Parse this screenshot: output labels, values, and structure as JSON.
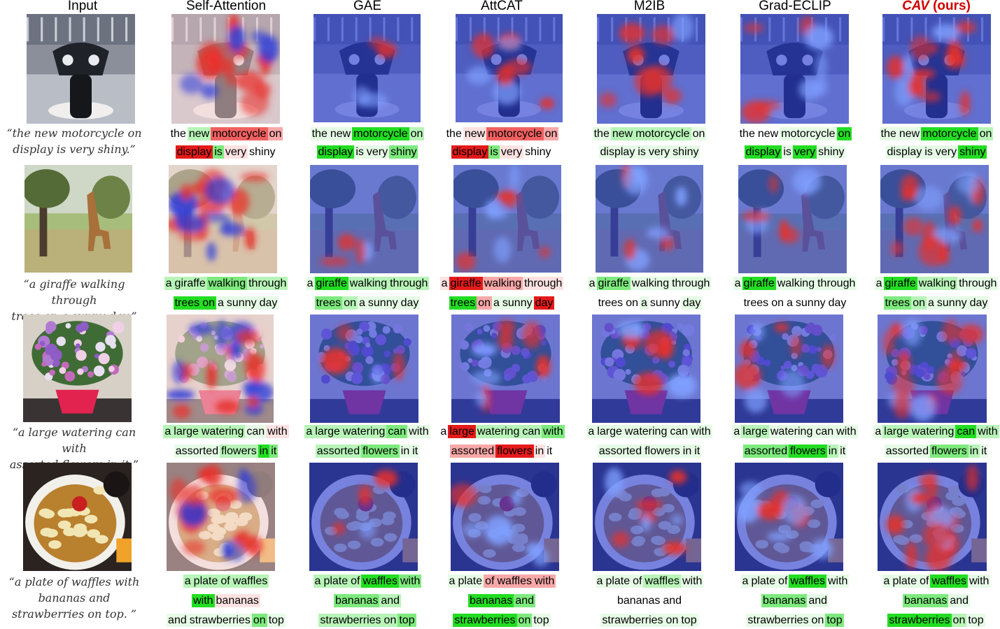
{
  "columns": [
    "Input",
    "Self-Attention",
    "GAE",
    "AttCAT",
    "M2IB",
    "Grad-ECLIP"
  ],
  "ours_column": {
    "name": "CAV",
    "suffix": " (ours)"
  },
  "rows": [
    {
      "caption": [
        "“the new motorcycle on",
        "display is very shiny.”"
      ],
      "scene": "motorcycle",
      "methods": [
        [
          [
            [
              "the",
              "g0"
            ],
            [
              "new",
              "g2"
            ],
            [
              "motorcycle",
              "r3"
            ],
            [
              "on",
              "r2"
            ]
          ],
          [
            [
              "display",
              "r4"
            ],
            [
              "is",
              "g3"
            ],
            [
              "very",
              "r1"
            ],
            [
              "shiny",
              "g0"
            ]
          ]
        ],
        [
          [
            [
              "the",
              "g1"
            ],
            [
              "new",
              "g1"
            ],
            [
              "motorcycle",
              "g4"
            ],
            [
              "on",
              "g2"
            ]
          ],
          [
            [
              "display",
              "g4"
            ],
            [
              "is",
              "g1"
            ],
            [
              "very",
              "g1"
            ],
            [
              "shiny",
              "g3"
            ]
          ]
        ],
        [
          [
            [
              "the",
              "g0"
            ],
            [
              "new",
              "r1"
            ],
            [
              "motorcycle",
              "r3"
            ],
            [
              "on",
              "r2"
            ]
          ],
          [
            [
              "display",
              "r4"
            ],
            [
              "is",
              "g3"
            ],
            [
              "very",
              "r1"
            ],
            [
              "shiny",
              "g0"
            ]
          ]
        ],
        [
          [
            [
              "the",
              "g1"
            ],
            [
              "new",
              "g2"
            ],
            [
              "motorcycle",
              "g2"
            ],
            [
              "on",
              "g1"
            ]
          ],
          [
            [
              "display",
              "g1"
            ],
            [
              "is",
              "g1"
            ],
            [
              "very",
              "g1"
            ],
            [
              "shiny",
              "g1"
            ]
          ]
        ],
        [
          [
            [
              "the",
              "g0"
            ],
            [
              "new",
              "g0"
            ],
            [
              "motorcycle",
              "g1"
            ],
            [
              "on",
              "g4"
            ]
          ],
          [
            [
              "display",
              "g4"
            ],
            [
              "is",
              "g1"
            ],
            [
              "very",
              "g4"
            ],
            [
              "shiny",
              "g1"
            ]
          ]
        ],
        [
          [
            [
              "the",
              "g1"
            ],
            [
              "new",
              "g1"
            ],
            [
              "motorcycle",
              "g4"
            ],
            [
              "on",
              "g2"
            ]
          ],
          [
            [
              "display",
              "g1"
            ],
            [
              "is",
              "g1"
            ],
            [
              "very",
              "g1"
            ],
            [
              "shiny",
              "g4"
            ]
          ]
        ]
      ]
    },
    {
      "caption": [
        "“a giraffe walking through",
        "trees on a sunny day.”"
      ],
      "scene": "giraffe",
      "methods": [
        [
          [
            [
              "a",
              "g2"
            ],
            [
              "giraffe",
              "g2"
            ],
            [
              "walking",
              "g3"
            ],
            [
              "through",
              "g2"
            ]
          ],
          [
            [
              "trees",
              "g4"
            ],
            [
              "on",
              "g4"
            ],
            [
              "a",
              "g1"
            ],
            [
              "sunny",
              "g1"
            ],
            [
              "day",
              "g1"
            ]
          ]
        ],
        [
          [
            [
              "a",
              "g1"
            ],
            [
              "giraffe",
              "g4"
            ],
            [
              "walking",
              "g2"
            ],
            [
              "through",
              "g2"
            ]
          ],
          [
            [
              "trees",
              "g3"
            ],
            [
              "on",
              "g2"
            ],
            [
              "a",
              "g1"
            ],
            [
              "sunny",
              "g1"
            ],
            [
              "day",
              "g1"
            ]
          ]
        ],
        [
          [
            [
              "a",
              "r1"
            ],
            [
              "giraffe",
              "r4"
            ],
            [
              "walking",
              "r2"
            ],
            [
              "through",
              "r1"
            ]
          ],
          [
            [
              "trees",
              "g4"
            ],
            [
              "on",
              "r2"
            ],
            [
              "a",
              "g1"
            ],
            [
              "sunny",
              "g1"
            ],
            [
              "day",
              "r4"
            ]
          ]
        ],
        [
          [
            [
              "a",
              "g1"
            ],
            [
              "giraffe",
              "g3"
            ],
            [
              "walking",
              "g1"
            ],
            [
              "through",
              "g1"
            ]
          ],
          [
            [
              "trees",
              "g0"
            ],
            [
              "on",
              "g0"
            ],
            [
              "a",
              "g1"
            ],
            [
              "sunny",
              "g0"
            ],
            [
              "day",
              "g1"
            ]
          ]
        ],
        [
          [
            [
              "a",
              "g1"
            ],
            [
              "giraffe",
              "g4"
            ],
            [
              "walking",
              "g1"
            ],
            [
              "through",
              "g1"
            ]
          ],
          [
            [
              "trees",
              "g0"
            ],
            [
              "on",
              "g0"
            ],
            [
              "a",
              "g0"
            ],
            [
              "sunny",
              "g0"
            ],
            [
              "day",
              "g0"
            ]
          ]
        ],
        [
          [
            [
              "a",
              "g1"
            ],
            [
              "giraffe",
              "g4"
            ],
            [
              "walking",
              "g2"
            ],
            [
              "through",
              "g1"
            ]
          ],
          [
            [
              "trees",
              "g3"
            ],
            [
              "on",
              "g2"
            ],
            [
              "a",
              "g1"
            ],
            [
              "sunny",
              "g1"
            ],
            [
              "day",
              "g1"
            ]
          ]
        ]
      ]
    },
    {
      "caption": [
        "“a large watering can with",
        "assorted flowers in it.”"
      ],
      "scene": "flowers",
      "methods": [
        [
          [
            [
              "a",
              "g2"
            ],
            [
              "large",
              "g2"
            ],
            [
              "watering",
              "g2"
            ],
            [
              "can",
              "g1"
            ],
            [
              "with",
              "r1"
            ]
          ],
          [
            [
              "assorted",
              "g1"
            ],
            [
              "flowers",
              "g2"
            ],
            [
              "in",
              "g4"
            ],
            [
              "it",
              "g3"
            ]
          ]
        ],
        [
          [
            [
              "a",
              "g2"
            ],
            [
              "large",
              "g2"
            ],
            [
              "watering",
              "g2"
            ],
            [
              "can",
              "g3"
            ],
            [
              "with",
              "g1"
            ]
          ],
          [
            [
              "assorted",
              "g2"
            ],
            [
              "flowers",
              "g3"
            ],
            [
              "in",
              "g1"
            ],
            [
              "it",
              "g1"
            ]
          ]
        ],
        [
          [
            [
              "a",
              "g0"
            ],
            [
              "large",
              "r4"
            ],
            [
              "watering",
              "g2"
            ],
            [
              "can",
              "g2"
            ],
            [
              "with",
              "g3"
            ]
          ],
          [
            [
              "assorted",
              "r2"
            ],
            [
              "flowers",
              "r4"
            ],
            [
              "in",
              "r1"
            ],
            [
              "it",
              "g0"
            ]
          ]
        ],
        [
          [
            [
              "a",
              "g1"
            ],
            [
              "large",
              "g1"
            ],
            [
              "watering",
              "g1"
            ],
            [
              "can",
              "g1"
            ],
            [
              "with",
              "g1"
            ]
          ],
          [
            [
              "assorted",
              "g1"
            ],
            [
              "flowers",
              "g1"
            ],
            [
              "in",
              "g1"
            ],
            [
              "it",
              "g1"
            ]
          ]
        ],
        [
          [
            [
              "a",
              "g1"
            ],
            [
              "large",
              "g2"
            ],
            [
              "watering",
              "g1"
            ],
            [
              "can",
              "g1"
            ],
            [
              "with",
              "g1"
            ]
          ],
          [
            [
              "assorted",
              "g3"
            ],
            [
              "flowers",
              "g4"
            ],
            [
              "in",
              "g2"
            ],
            [
              "it",
              "g1"
            ]
          ]
        ],
        [
          [
            [
              "a",
              "g1"
            ],
            [
              "large",
              "g2"
            ],
            [
              "watering",
              "g2"
            ],
            [
              "can",
              "g4"
            ],
            [
              "with",
              "g2"
            ]
          ],
          [
            [
              "assorted",
              "g1"
            ],
            [
              "flowers",
              "g3"
            ],
            [
              "in",
              "g2"
            ],
            [
              "it",
              "g1"
            ]
          ]
        ]
      ]
    },
    {
      "caption": [
        "“a plate of waffles with",
        "bananas and",
        "strawberries on top. ”"
      ],
      "scene": "waffles",
      "methods": [
        [
          [
            [
              "a",
              "g2"
            ],
            [
              "plate",
              "g2"
            ],
            [
              "of",
              "g2"
            ],
            [
              "waffles",
              "g2"
            ]
          ],
          [
            [
              "with",
              "g4"
            ],
            [
              "bananas",
              "r1"
            ]
          ],
          [
            [
              "and",
              "g1"
            ],
            [
              "strawberries",
              "g1"
            ],
            [
              "on",
              "g3"
            ],
            [
              "top",
              "g1"
            ]
          ]
        ],
        [
          [
            [
              "a",
              "g2"
            ],
            [
              "plate",
              "g2"
            ],
            [
              "of",
              "g2"
            ],
            [
              "waffles",
              "g4"
            ],
            [
              "with",
              "g3"
            ]
          ],
          [
            [
              "bananas",
              "g3"
            ],
            [
              "and",
              "g2"
            ]
          ],
          [
            [
              "strawberries",
              "g2"
            ],
            [
              "on",
              "g2"
            ],
            [
              "top",
              "g3"
            ]
          ]
        ],
        [
          [
            [
              "a",
              "g1"
            ],
            [
              "plate",
              "g1"
            ],
            [
              "of",
              "r2"
            ],
            [
              "waffles",
              "r2"
            ],
            [
              "with",
              "r2"
            ]
          ],
          [
            [
              "bananas",
              "g4"
            ],
            [
              "and",
              "g3"
            ]
          ],
          [
            [
              "strawberries",
              "g4"
            ],
            [
              "on",
              "g3"
            ],
            [
              "top",
              "g1"
            ]
          ]
        ],
        [
          [
            [
              "a",
              "g1"
            ],
            [
              "plate",
              "g1"
            ],
            [
              "of",
              "g1"
            ],
            [
              "waffles",
              "g2"
            ],
            [
              "with",
              "g1"
            ]
          ],
          [
            [
              "bananas",
              "g0"
            ],
            [
              "and",
              "g0"
            ]
          ],
          [
            [
              "strawberries",
              "g1"
            ],
            [
              "on",
              "g1"
            ],
            [
              "top",
              "g1"
            ]
          ]
        ],
        [
          [
            [
              "a",
              "g1"
            ],
            [
              "plate",
              "g1"
            ],
            [
              "of",
              "g1"
            ],
            [
              "waffles",
              "g4"
            ],
            [
              "with",
              "g1"
            ]
          ],
          [
            [
              "bananas",
              "g3"
            ],
            [
              "and",
              "g1"
            ]
          ],
          [
            [
              "strawberries",
              "g1"
            ],
            [
              "on",
              "g1"
            ],
            [
              "top",
              "g3"
            ]
          ]
        ],
        [
          [
            [
              "a",
              "g1"
            ],
            [
              "plate",
              "g1"
            ],
            [
              "of",
              "g1"
            ],
            [
              "waffles",
              "g4"
            ],
            [
              "with",
              "g1"
            ]
          ],
          [
            [
              "bananas",
              "g3"
            ],
            [
              "and",
              "g1"
            ]
          ],
          [
            [
              "strawberries",
              "g4"
            ],
            [
              "on",
              "g2"
            ],
            [
              "top",
              "g1"
            ]
          ]
        ]
      ]
    }
  ]
}
